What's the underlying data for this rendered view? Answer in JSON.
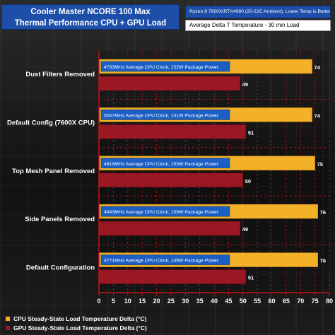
{
  "header": {
    "title_line1": "Cooler Master NCORE 100 Max",
    "title_line2": "Thermal Performance CPU + GPU Load",
    "system_note": "Ryzen 9 7900X/RTX4080 (20-22C Ambient), Lower Temp is Better",
    "metric_note": "Average Delta T Temperature - 30 min Load"
  },
  "colors": {
    "cpu_bar": "#f3b12a",
    "gpu_bar": "#9a1724",
    "note_box": "#1b5fc4",
    "axis": "#c0151b",
    "title_bg": "#1e4fa8"
  },
  "chart_data": {
    "type": "bar",
    "orientation": "horizontal",
    "title": "",
    "xlabel": "",
    "ylabel": "",
    "xlim": [
      0,
      80
    ],
    "xticks": [
      0,
      5,
      10,
      15,
      20,
      25,
      30,
      35,
      40,
      45,
      50,
      55,
      60,
      65,
      70,
      75,
      80
    ],
    "grid": true,
    "legend_position": "bottom-left",
    "categories": [
      "Dust Filters Removed",
      "Default Config (7600X CPU)",
      "Top Mesh Panel Removed",
      "Side Panels Removed",
      "Default Configuration"
    ],
    "series": [
      {
        "name": "CPU Steady-State Load Temperature Delta (°C)",
        "values": [
          74,
          74,
          75,
          76,
          76
        ]
      },
      {
        "name": "GPU Steady-State Load Temperature Delta (°C)",
        "values": [
          49,
          51,
          50,
          49,
          51
        ]
      }
    ],
    "annotations": [
      "4793MHz Average CPU Clock, 152W Package Power",
      "5047MHz Average CPU Clock, 101W Package Power",
      "4814MHz Average CPU Clock, 153W Package Power",
      "4943MHz Average CPU Clock, 159W Package Power",
      "4771MHz Average CPU Clock, 149W Package Power"
    ]
  }
}
